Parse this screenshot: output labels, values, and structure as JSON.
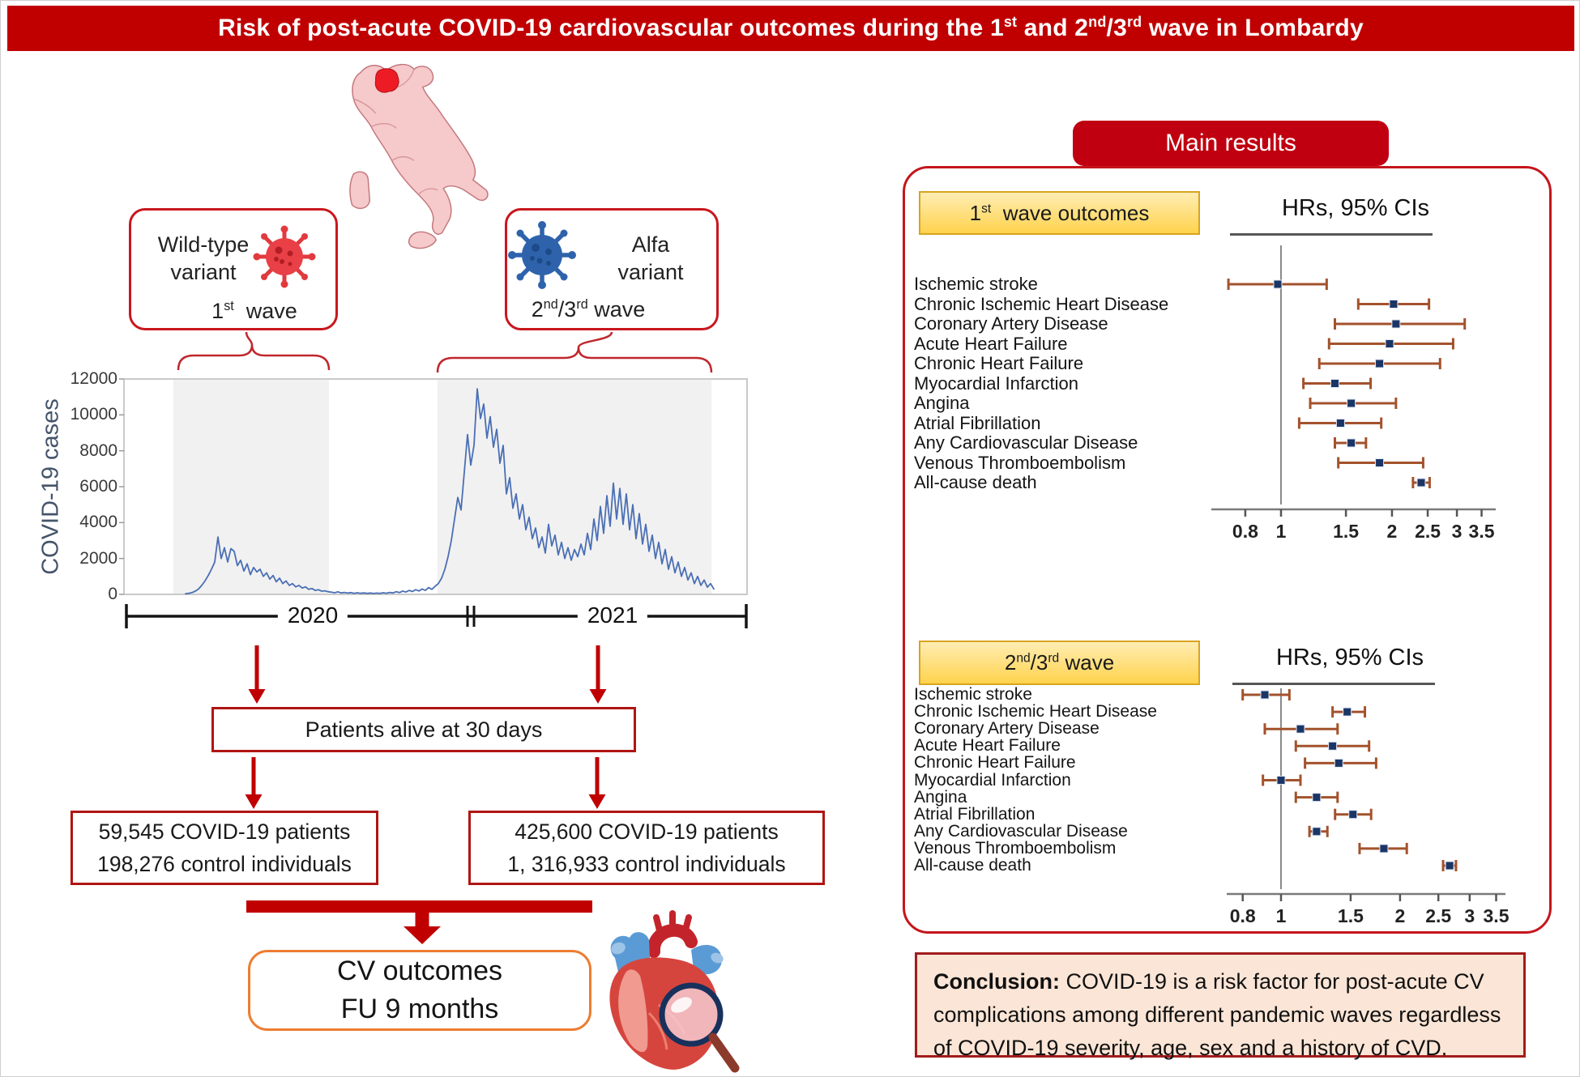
{
  "title_html": "Risk of post-acute COVID-19 cardiovascular outcomes during the 1<sup>st</sup> and 2<sup>nd</sup>/3<sup>rd</sup> wave in Lombardy",
  "variant_boxes": {
    "left": {
      "name_html": "Wild-type<br>variant",
      "wave_html": "1<sup>st</sup>&nbsp; wave"
    },
    "right": {
      "name_html": "Alfa<br>variant",
      "wave_html": "2<sup>nd</sup>/3<sup>rd</sup> wave"
    }
  },
  "flow": {
    "alive_box": "Patients alive at 30 days",
    "left_counts": [
      "59,545 COVID-19 patients",
      "198,276 control individuals"
    ],
    "right_counts": [
      "425,600 COVID-19 patients",
      "1, 316,933 control individuals"
    ],
    "cv_box_lines": [
      "CV outcomes",
      "FU 9 months"
    ]
  },
  "main_results": {
    "tab_label": "Main results",
    "section1": {
      "badge_html": "1<sup>st</sup>&nbsp; wave outcomes",
      "heading": "HRs, 95% CIs"
    },
    "section2": {
      "badge_html": "2<sup>nd</sup>/3<sup>rd</sup> wave",
      "heading": "HRs, 95% CIs"
    }
  },
  "conclusion_html": "<b>Conclusion:</b> COVID-19 is a risk factor for post-acute CV complications among different pandemic waves regardless of COVID-19 severity, age, sex and a history of CVD.",
  "icons": {
    "virus_red": "coronavirus-icon",
    "virus_blue": "coronavirus-icon",
    "map": "italy-map-lombardy-highlighted",
    "heart": "heart-with-magnifier-illustration"
  },
  "colors": {
    "accent_red": "#c00000",
    "box_border_red": "#b01513",
    "orange_border": "#ed7d31",
    "badge_yellow": "#ffd34d",
    "forest_bar": "#a3522c",
    "forest_marker": "#1b3666",
    "epi_line": "#4a6fb5",
    "band_gray": "#f1f1f1",
    "map_pink": "#f6c9cb",
    "map_highlight": "#ed1c24",
    "conclusion_bg": "#fbe5d6"
  },
  "chart_data": [
    {
      "type": "line",
      "title": "Daily COVID-19 cases, Lombardy",
      "ylabel": "COVID-19 cases",
      "yticks": [
        0,
        2000,
        4000,
        6000,
        8000,
        10000,
        12000
      ],
      "ylim": [
        0,
        12000
      ],
      "x_periods": [
        "2020",
        "2021"
      ],
      "grid": false,
      "shaded_wave_windows_frac": [
        [
          0.079,
          0.329
        ],
        [
          0.503,
          0.943
        ]
      ],
      "values": [
        30,
        60,
        100,
        180,
        300,
        500,
        750,
        1050,
        1400,
        1800,
        3200,
        2000,
        2600,
        1800,
        2550,
        2400,
        1600,
        1900,
        1300,
        1700,
        1100,
        1500,
        1250,
        1400,
        1000,
        1200,
        850,
        1050,
        700,
        900,
        600,
        750,
        500,
        600,
        420,
        500,
        350,
        420,
        280,
        330,
        220,
        260,
        180,
        200,
        150,
        120,
        90,
        140,
        80,
        110,
        70,
        100,
        60,
        90,
        60,
        80,
        55,
        75,
        50,
        70,
        55,
        90,
        65,
        110,
        80,
        150,
        100,
        180,
        130,
        220,
        160,
        260,
        190,
        300,
        220,
        380,
        280,
        450,
        600,
        900,
        1400,
        2100,
        3000,
        4200,
        5400,
        4700,
        6800,
        8900,
        7200,
        8300,
        11450,
        9800,
        10600,
        8700,
        9900,
        8200,
        9200,
        7300,
        8300,
        5600,
        6500,
        4800,
        5600,
        4200,
        5000,
        3600,
        4300,
        3100,
        3700,
        2600,
        3200,
        2300,
        3900,
        2700,
        3300,
        2200,
        2900,
        2000,
        2600,
        1900,
        2500,
        2100,
        2800,
        2200,
        3400,
        2500,
        4200,
        3000,
        4900,
        3400,
        5500,
        3800,
        6200,
        4200,
        5900,
        3900,
        5600,
        3600,
        5000,
        3100,
        4500,
        2800,
        3900,
        2400,
        3300,
        2000,
        2900,
        1700,
        2500,
        1400,
        2100,
        1200,
        1800,
        1000,
        1500,
        800,
        1200,
        600,
        1000,
        500,
        800,
        400,
        600,
        300
      ]
    },
    {
      "type": "forest",
      "title": "1st wave outcomes",
      "xlabel": "HRs, 95% CIs",
      "scale": "log",
      "ticks": [
        0.8,
        1,
        1.5,
        2,
        2.5,
        3,
        3.5
      ],
      "rows": [
        {
          "label": "Ischemic stroke",
          "hr": 0.98,
          "lo": 0.72,
          "hi": 1.33
        },
        {
          "label": "Chronic Ischemic Heart Disease",
          "hr": 2.02,
          "lo": 1.62,
          "hi": 2.52
        },
        {
          "label": "Coronary Artery Disease",
          "hr": 2.05,
          "lo": 1.4,
          "hi": 3.15
        },
        {
          "label": "Acute Heart Failure",
          "hr": 1.97,
          "lo": 1.35,
          "hi": 2.93
        },
        {
          "label": "Chronic Heart Failure",
          "hr": 1.85,
          "lo": 1.27,
          "hi": 2.7
        },
        {
          "label": "Myocardial Infarction",
          "hr": 1.4,
          "lo": 1.15,
          "hi": 1.75
        },
        {
          "label": "Angina",
          "hr": 1.55,
          "lo": 1.2,
          "hi": 2.05
        },
        {
          "label": "Atrial Fibrillation",
          "hr": 1.45,
          "lo": 1.12,
          "hi": 1.87
        },
        {
          "label": "Any Cardiovascular Disease",
          "hr": 1.55,
          "lo": 1.4,
          "hi": 1.7
        },
        {
          "label": "Venous Thromboembolism",
          "hr": 1.85,
          "lo": 1.43,
          "hi": 2.43
        },
        {
          "label": "All-cause death",
          "hr": 2.4,
          "lo": 2.28,
          "hi": 2.53
        }
      ]
    },
    {
      "type": "forest",
      "title": "2nd/3rd wave outcomes",
      "xlabel": "HRs, 95% CIs",
      "scale": "log",
      "ticks": [
        0.8,
        1,
        1.5,
        2,
        2.5,
        3,
        3.5
      ],
      "rows": [
        {
          "label": "Ischemic stroke",
          "hr": 0.91,
          "lo": 0.8,
          "hi": 1.05
        },
        {
          "label": "Chronic Ischemic Heart Disease",
          "hr": 1.47,
          "lo": 1.35,
          "hi": 1.63
        },
        {
          "label": "Coronary Artery Disease",
          "hr": 1.12,
          "lo": 0.91,
          "hi": 1.39
        },
        {
          "label": "Acute Heart Failure",
          "hr": 1.35,
          "lo": 1.09,
          "hi": 1.67
        },
        {
          "label": "Chronic Heart Failure",
          "hr": 1.4,
          "lo": 1.15,
          "hi": 1.74
        },
        {
          "label": "Myocardial Infarction",
          "hr": 1.0,
          "lo": 0.9,
          "hi": 1.12
        },
        {
          "label": "Angina",
          "hr": 1.23,
          "lo": 1.09,
          "hi": 1.39
        },
        {
          "label": "Atrial Fibrillation",
          "hr": 1.52,
          "lo": 1.37,
          "hi": 1.69
        },
        {
          "label": "Any Cardiovascular Disease",
          "hr": 1.23,
          "lo": 1.18,
          "hi": 1.31
        },
        {
          "label": "Venous Thromboembolism",
          "hr": 1.82,
          "lo": 1.58,
          "hi": 2.08
        },
        {
          "label": "All-cause death",
          "hr": 2.67,
          "lo": 2.57,
          "hi": 2.77
        }
      ]
    }
  ]
}
